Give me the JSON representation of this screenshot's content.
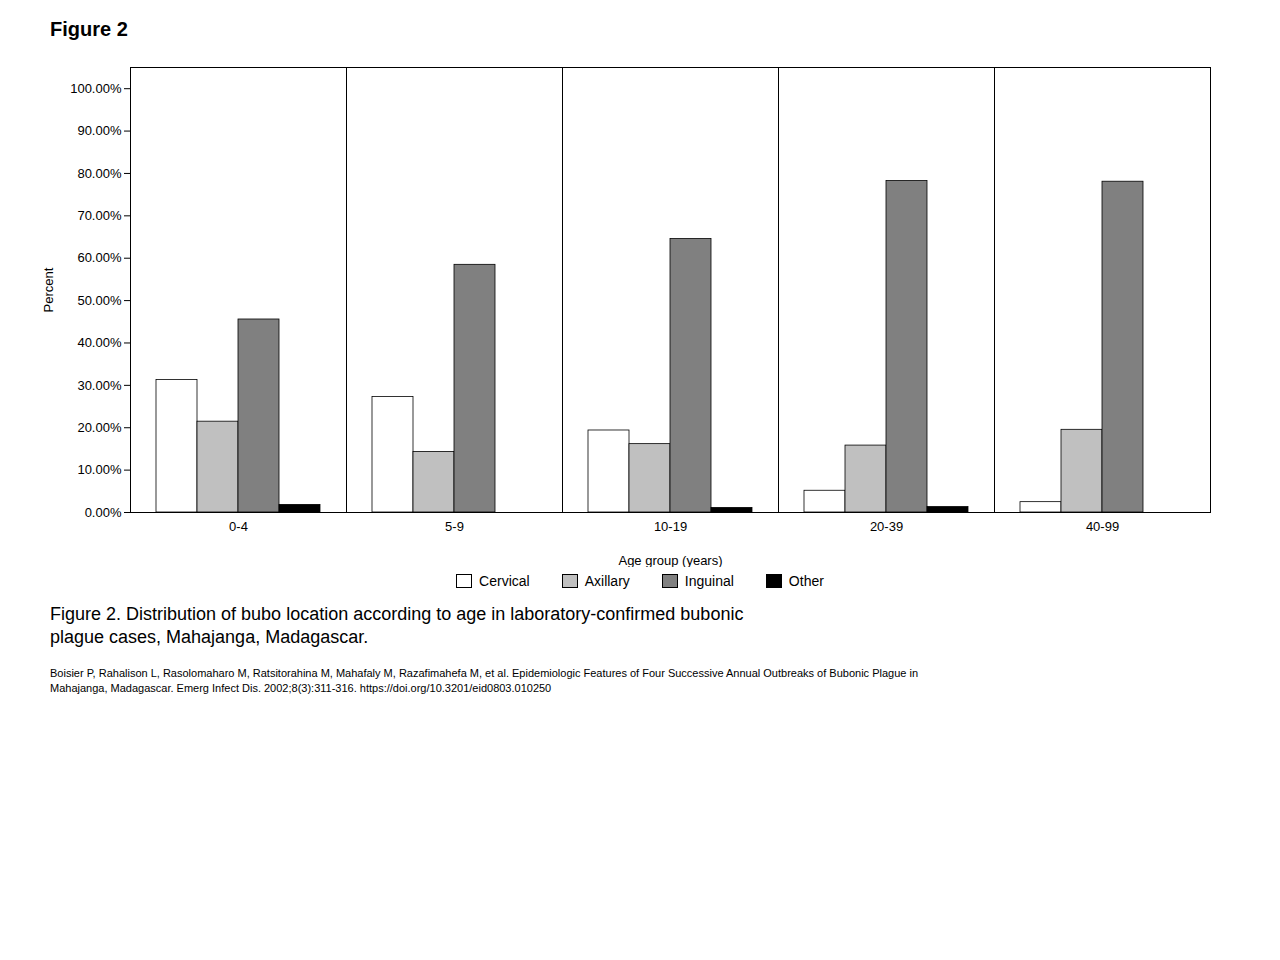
{
  "chart_data": {
    "type": "bar",
    "title": "Figure 2",
    "xlabel": "Age group (years)",
    "ylabel": "Percent",
    "categories": [
      "0-4",
      "5-9",
      "10-19",
      "20-39",
      "40-99"
    ],
    "series": [
      {
        "name": "Cervical",
        "color": "#ffffff",
        "values": [
          31.25,
          27.27,
          19.35,
          5.13,
          2.44
        ]
      },
      {
        "name": "Axillary",
        "color": "#c0c0c0",
        "values": [
          21.43,
          14.29,
          16.13,
          15.79,
          19.51
        ]
      },
      {
        "name": "Inguinal",
        "color": "#808080",
        "values": [
          45.54,
          58.44,
          64.52,
          78.21,
          78.05
        ]
      },
      {
        "name": "Other",
        "color": "#000000",
        "values": [
          1.79,
          0.0,
          1.08,
          1.28,
          0.0
        ]
      }
    ],
    "ylim": [
      0,
      105
    ],
    "yticks": [
      {
        "value": 0,
        "label": "0.00%"
      },
      {
        "value": 10,
        "label": "10.00%"
      },
      {
        "value": 20,
        "label": "20.00%"
      },
      {
        "value": 30,
        "label": "30.00%"
      },
      {
        "value": 40,
        "label": "40.00%"
      },
      {
        "value": 50,
        "label": "50.00%"
      },
      {
        "value": 60,
        "label": "60.00%"
      },
      {
        "value": 70,
        "label": "70.00%"
      },
      {
        "value": 80,
        "label": "80.00%"
      },
      {
        "value": 90,
        "label": "90.00%"
      },
      {
        "value": 100,
        "label": "100.00%"
      }
    ],
    "grid": false,
    "legend": "bottom",
    "annotations": [
      "Figure 2. Distribution of bubo location according to age in laboratory-confirmed bubonic\nplague cases, Mahajanga, Madagascar.",
      "Boisier P, Rahalison L, Rasolomaharo M, Ratsitorahina M, Mahafaly M, Razafimahefa M, et al. Epidemiologic Features of Four Successive Annual Outbreaks of Bubonic Plague in\nMahajanga, Madagascar. Emerg Infect Dis. 2002;8(3):311-316. https://doi.org/10.3201/eid0803.010250"
    ]
  }
}
